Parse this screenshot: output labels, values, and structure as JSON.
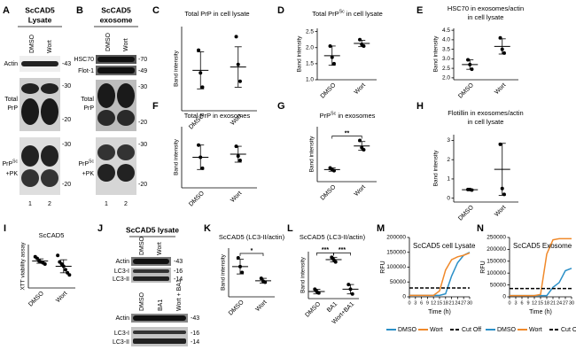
{
  "blots": [
    {
      "panel": "A",
      "title": [
        "ScCAD5",
        "Lysate"
      ],
      "lanes": [
        "DMSO",
        "Wort"
      ],
      "rows": [
        {
          "label": [
            "Actin"
          ],
          "markers": [
            "-43"
          ]
        },
        {
          "label": [
            "Total",
            "PrP"
          ],
          "markers": [
            "-30",
            "-20"
          ]
        },
        {
          "label": [
            "PrP",
            "Sc",
            "+PK"
          ],
          "markers": [
            "-30",
            "-20"
          ]
        }
      ],
      "lane_numbers": [
        "1",
        "2"
      ]
    },
    {
      "panel": "B",
      "title": [
        "ScCAD5",
        "exosome"
      ],
      "lanes": [
        "DMSO",
        "Wort"
      ],
      "rows": [
        {
          "label": [
            "HSC70"
          ],
          "markers": [
            "-70"
          ]
        },
        {
          "label": [
            "Flot-1"
          ],
          "markers": [
            "-49"
          ]
        },
        {
          "label": [
            "Total",
            "PrP"
          ],
          "markers": [
            "-30",
            "-20"
          ]
        },
        {
          "label": [
            "PrP",
            "Sc",
            "+PK"
          ],
          "markers": [
            "-30",
            "-20"
          ]
        }
      ],
      "lane_numbers": [
        "1",
        "2"
      ]
    },
    {
      "panel": "J",
      "title": [
        "ScCAD5 lysate"
      ],
      "blocks": [
        {
          "lanes": [
            "DMSO",
            "Wort"
          ],
          "rows": [
            {
              "label": [
                "Actin"
              ],
              "markers": [
                "-43"
              ]
            },
            {
              "label": [
                "LC3-I",
                "LC3-II"
              ],
              "markers": [
                "-16",
                "-14"
              ]
            }
          ]
        },
        {
          "lanes": [
            "DMSO",
            "BA1",
            "Wort + BA1"
          ],
          "rows": [
            {
              "label": [
                "Actin"
              ],
              "markers": [
                "-43"
              ]
            },
            {
              "label": [
                "LC3-I",
                "LC3-II"
              ],
              "markers": [
                "-16",
                "-14"
              ]
            }
          ]
        }
      ]
    }
  ],
  "chart_data": [
    {
      "type": "dot",
      "panel": "C",
      "title": [
        [
          "Total PrP in cell lysate"
        ]
      ],
      "ylabel": "Band intensity",
      "categories": [
        "DMSO",
        "Wort"
      ],
      "points": [
        [
          0.72,
          0.45,
          0.28
        ],
        [
          0.88,
          0.55,
          0.35
        ]
      ],
      "means": [
        0.48,
        0.52
      ],
      "errors": [
        0.22,
        0.24
      ],
      "ylim": [
        0,
        1
      ]
    },
    {
      "type": "dot",
      "panel": "D",
      "title": [
        [
          "Total PrP",
          "Sc",
          " in cell lysate"
        ]
      ],
      "ylabel": "Band intensity",
      "categories": [
        "DMSO",
        "Wort"
      ],
      "points": [
        [
          2.05,
          1.7,
          1.5
        ],
        [
          2.25,
          2.1,
          2.05
        ]
      ],
      "means": [
        1.75,
        2.13
      ],
      "errors": [
        0.3,
        0.1
      ],
      "ylim": [
        1.0,
        2.6
      ],
      "yticks": [
        {
          "value": 1,
          "label": "1.0"
        },
        {
          "value": 1.5,
          "label": "1.5"
        },
        {
          "value": 2,
          "label": "2.0"
        },
        {
          "value": 2.5,
          "label": "2.5"
        }
      ]
    },
    {
      "type": "dot",
      "panel": "E",
      "title": [
        [
          "HSC70 in exosomes/actin"
        ],
        [
          "in cell lysate"
        ]
      ],
      "ylabel": "Band intensity",
      "categories": [
        "DMSO",
        "Wort"
      ],
      "points": [
        [
          2.95,
          2.7,
          2.45
        ],
        [
          4.1,
          3.5,
          3.3
        ]
      ],
      "means": [
        2.7,
        3.65
      ],
      "errors": [
        0.25,
        0.4
      ],
      "ylim": [
        1.9,
        4.6
      ],
      "yticks": [
        {
          "value": 2,
          "label": "2.0"
        },
        2.5,
        {
          "value": 3,
          "label": "3.0"
        },
        3.5,
        {
          "value": 4,
          "label": "4.0"
        },
        4.5
      ]
    },
    {
      "type": "dot",
      "panel": "F",
      "title": [
        [
          "Total PrP in exosomes"
        ]
      ],
      "ylabel": "Band intensity",
      "categories": [
        "DMSO",
        "Wort"
      ],
      "points": [
        [
          0.7,
          0.5,
          0.32
        ],
        [
          0.68,
          0.52,
          0.45
        ]
      ],
      "means": [
        0.5,
        0.55
      ],
      "errors": [
        0.2,
        0.13
      ],
      "ylim": [
        0,
        1
      ]
    },
    {
      "type": "dot",
      "panel": "G",
      "title": [
        [
          "PrP",
          "Sc",
          " in exosomes"
        ]
      ],
      "ylabel": "Band intensity",
      "categories": [
        "DMSO",
        "Wort"
      ],
      "points": [
        [
          0.25,
          0.22,
          0.2
        ],
        [
          0.75,
          0.62,
          0.58
        ]
      ],
      "means": [
        0.22,
        0.65
      ],
      "errors": [
        0.03,
        0.08
      ],
      "ylim": [
        0,
        1
      ],
      "brackets": [
        {
          "label": "**",
          "between": [
            0,
            1
          ]
        }
      ]
    },
    {
      "type": "dot",
      "panel": "H",
      "title": [
        [
          "Flotillin in exosomes/actin"
        ],
        [
          "in cell lysate"
        ]
      ],
      "ylabel": "Band intensity",
      "categories": [
        "DMSO",
        "Wort"
      ],
      "points": [
        [
          0.45,
          0.45,
          0.42
        ],
        [
          2.8,
          0.5,
          0.2
        ]
      ],
      "means": [
        0.44,
        1.5
      ],
      "errors": [
        0.03,
        1.35
      ],
      "ylim": [
        -0.2,
        3.3
      ],
      "yticks": [
        0,
        1,
        2,
        3
      ]
    },
    {
      "type": "dot",
      "panel": "I",
      "title": [
        [
          "ScCAD5"
        ]
      ],
      "ylabel": "XTT viability assay",
      "categories": [
        "DMSO",
        "Wort"
      ],
      "points": [
        [
          0.72,
          0.68,
          0.62,
          0.6,
          0.58,
          0.55
        ],
        [
          0.75,
          0.6,
          0.55,
          0.5,
          0.42,
          0.35,
          0.3
        ]
      ],
      "means": [
        0.62,
        0.5
      ],
      "errors": [
        0.05,
        0.15
      ],
      "ylim": [
        0,
        1
      ]
    },
    {
      "type": "dot",
      "panel": "K",
      "title": [
        [
          "ScCAD5 (LC3-II/actin)"
        ]
      ],
      "ylabel": "Band intensity",
      "categories": [
        "DMSO",
        "Wort"
      ],
      "points": [
        [
          0.8,
          0.62,
          0.5
        ],
        [
          0.38,
          0.32,
          0.3
        ]
      ],
      "means": [
        0.62,
        0.33
      ],
      "errors": [
        0.15,
        0.05
      ],
      "ylim": [
        0,
        1
      ],
      "brackets": [
        {
          "label": "*",
          "between": [
            0,
            1
          ]
        }
      ]
    },
    {
      "type": "dot",
      "panel": "L",
      "title": [
        [
          "ScCAD5 (LC3-II/actin)"
        ]
      ],
      "ylabel": "Band intensity",
      "categories": [
        "DMSO",
        "BA1",
        "Wort+BA1"
      ],
      "points": [
        [
          0.2,
          0.15,
          0.12
        ],
        [
          0.88,
          0.83,
          0.78
        ],
        [
          0.3,
          0.2,
          0.1
        ]
      ],
      "means": [
        0.15,
        0.83,
        0.2
      ],
      "errors": [
        0.05,
        0.05,
        0.1
      ],
      "ylim": [
        0,
        1
      ],
      "brackets": [
        {
          "label": "***",
          "between": [
            0,
            1
          ]
        },
        {
          "label": "***",
          "between": [
            1,
            2
          ]
        }
      ]
    },
    {
      "type": "line",
      "panel": "M",
      "title": [
        [
          "ScCAD5 cell Lysate"
        ]
      ],
      "xlabel": "Time (h)",
      "ylabel": "RFU",
      "x": [
        0,
        3,
        6,
        9,
        12,
        15,
        18,
        21,
        24,
        27,
        30
      ],
      "xlim": [
        0,
        30
      ],
      "xticks": [
        0,
        3,
        6,
        9,
        12,
        15,
        18,
        21,
        24,
        27,
        30
      ],
      "ylim": [
        0,
        200000
      ],
      "yticks": [
        0,
        50000,
        100000,
        150000,
        200000
      ],
      "series": [
        {
          "name": "DMSO",
          "color": "#2a8fc7",
          "style": "solid",
          "values": [
            5000,
            5000,
            5000,
            5000,
            5000,
            5000,
            10000,
            70000,
            115000,
            140000,
            150000
          ]
        },
        {
          "name": "Wort",
          "color": "#f0892a",
          "style": "solid",
          "values": [
            5000,
            5000,
            5000,
            5000,
            5000,
            20000,
            90000,
            125000,
            135000,
            140000,
            148000
          ]
        },
        {
          "name": "Cut Off",
          "color": "#000000",
          "style": "dashed",
          "values": [
            30000,
            30000,
            30000,
            30000,
            30000,
            30000,
            30000,
            30000,
            30000,
            30000,
            30000
          ]
        }
      ]
    },
    {
      "type": "line",
      "panel": "N",
      "title": [
        [
          "ScCAD5 Exosome"
        ]
      ],
      "xlabel": "Time (h)",
      "ylabel": "RFU",
      "x": [
        0,
        3,
        6,
        9,
        12,
        15,
        18,
        21,
        24,
        27,
        30
      ],
      "xlim": [
        0,
        30
      ],
      "xticks": [
        0,
        3,
        6,
        9,
        12,
        15,
        18,
        21,
        24,
        27,
        30
      ],
      "ylim": [
        0,
        250000
      ],
      "yticks": [
        0,
        50000,
        100000,
        150000,
        200000,
        250000
      ],
      "series": [
        {
          "name": "DMSO",
          "color": "#2a8fc7",
          "style": "solid",
          "values": [
            5000,
            5000,
            5000,
            5000,
            5000,
            5000,
            5000,
            40000,
            60000,
            110000,
            120000
          ]
        },
        {
          "name": "Wort",
          "color": "#f0892a",
          "style": "solid",
          "values": [
            5000,
            5000,
            5000,
            5000,
            5000,
            10000,
            180000,
            240000,
            245000,
            245000,
            245000
          ]
        },
        {
          "name": "Cut Off",
          "color": "#000000",
          "style": "dashed",
          "values": [
            35000,
            35000,
            35000,
            35000,
            35000,
            35000,
            35000,
            35000,
            35000,
            35000,
            35000
          ]
        }
      ]
    }
  ]
}
